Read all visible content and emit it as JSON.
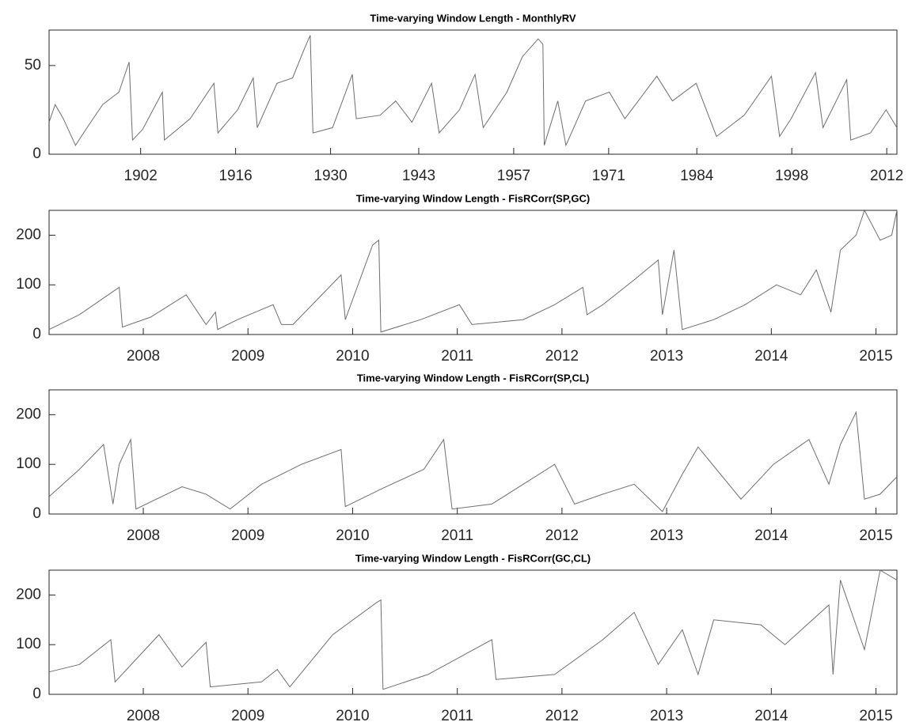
{
  "chart_data": [
    {
      "type": "line",
      "title": "Time-varying Window Length - MonthlyRV",
      "color": "#6e6e6e",
      "xlim": [
        1888.5,
        2013.5
      ],
      "ylim": [
        0,
        70
      ],
      "xticks": [
        1902,
        1916,
        1930,
        1943,
        1957,
        1971,
        1984,
        1998,
        2012
      ],
      "yticks": [
        0,
        50
      ],
      "x": [
        1888.5,
        1889.4,
        1890.6,
        1892.4,
        1894.1,
        1896.4,
        1898.8,
        1900.3,
        1900.8,
        1902.3,
        1905.2,
        1905.5,
        1909.3,
        1912.8,
        1913.4,
        1916.3,
        1918.6,
        1919.2,
        1922.1,
        1924.4,
        1926.2,
        1927.0,
        1927.4,
        1930.3,
        1933.2,
        1933.8,
        1937.3,
        1939.6,
        1942.0,
        1944.9,
        1946.0,
        1949.0,
        1951.3,
        1952.5,
        1956.0,
        1958.3,
        1960.6,
        1961.3,
        1961.5,
        1963.5,
        1964.7,
        1967.6,
        1971.1,
        1973.4,
        1978.1,
        1980.4,
        1983.9,
        1986.9,
        1991.0,
        1995.0,
        1996.2,
        1997.9,
        2001.5,
        2002.6,
        2006.1,
        2006.7,
        2009.6,
        2011.9,
        2013.5
      ],
      "values": [
        18,
        28,
        20,
        5,
        15,
        28,
        35,
        52,
        8,
        14,
        35,
        8,
        20,
        40,
        12,
        25,
        43,
        15,
        40,
        43,
        60,
        67,
        12,
        15,
        45,
        20,
        22,
        30,
        18,
        40,
        12,
        25,
        45,
        15,
        35,
        55,
        65,
        62,
        5,
        30,
        5,
        30,
        35,
        20,
        44,
        30,
        40,
        10,
        22,
        44,
        10,
        20,
        46,
        15,
        42,
        8,
        12,
        25,
        15
      ]
    },
    {
      "type": "line",
      "title": "Time-varying Window Length - FisRCorr(SP,GC)",
      "color": "#6e6e6e",
      "xlim": [
        2007.1,
        2015.2
      ],
      "ylim": [
        0,
        250
      ],
      "xticks": [
        2008,
        2009,
        2010,
        2011,
        2012,
        2013,
        2014,
        2015
      ],
      "yticks": [
        0,
        100,
        200
      ],
      "x": [
        2007.1,
        2007.39,
        2007.77,
        2007.8,
        2008.07,
        2008.41,
        2008.6,
        2008.69,
        2008.71,
        2008.9,
        2009.24,
        2009.32,
        2009.43,
        2009.89,
        2009.93,
        2010.19,
        2010.25,
        2010.27,
        2010.65,
        2011.02,
        2011.14,
        2011.63,
        2011.93,
        2012.2,
        2012.24,
        2012.39,
        2012.69,
        2012.92,
        2012.96,
        2013.07,
        2013.15,
        2013.45,
        2013.75,
        2014.05,
        2014.28,
        2014.43,
        2014.57,
        2014.66,
        2014.81,
        2014.89,
        2015.04,
        2015.15,
        2015.2
      ],
      "values": [
        10,
        40,
        95,
        15,
        35,
        80,
        20,
        45,
        10,
        30,
        60,
        20,
        20,
        120,
        30,
        180,
        190,
        5,
        30,
        60,
        20,
        30,
        60,
        95,
        40,
        60,
        110,
        150,
        40,
        170,
        10,
        30,
        60,
        100,
        80,
        130,
        45,
        170,
        200,
        250,
        190,
        200,
        250
      ]
    },
    {
      "type": "line",
      "title": "Time-varying Window Length - FisRCorr(SP,CL)",
      "color": "#6e6e6e",
      "xlim": [
        2007.1,
        2015.2
      ],
      "ylim": [
        0,
        250
      ],
      "xticks": [
        2008,
        2009,
        2010,
        2011,
        2012,
        2013,
        2014,
        2015
      ],
      "yticks": [
        0,
        100,
        200
      ],
      "x": [
        2007.1,
        2007.39,
        2007.62,
        2007.71,
        2007.77,
        2007.88,
        2007.93,
        2008.37,
        2008.6,
        2008.83,
        2009.13,
        2009.51,
        2009.89,
        2009.93,
        2010.27,
        2010.68,
        2010.87,
        2010.95,
        2011.33,
        2011.63,
        2011.93,
        2012.12,
        2012.39,
        2012.69,
        2012.96,
        2013.15,
        2013.3,
        2013.71,
        2014.02,
        2014.36,
        2014.55,
        2014.66,
        2014.81,
        2014.89,
        2015.04,
        2015.2
      ],
      "values": [
        35,
        90,
        140,
        20,
        100,
        150,
        10,
        55,
        40,
        10,
        60,
        100,
        130,
        15,
        50,
        90,
        150,
        10,
        20,
        60,
        100,
        20,
        40,
        60,
        5,
        80,
        135,
        30,
        100,
        150,
        60,
        140,
        205,
        30,
        40,
        75
      ]
    },
    {
      "type": "line",
      "title": "Time-varying Window Length - FisRCorr(GC,CL)",
      "color": "#6e6e6e",
      "xlim": [
        2007.1,
        2015.2
      ],
      "ylim": [
        0,
        250
      ],
      "xticks": [
        2008,
        2009,
        2010,
        2011,
        2012,
        2013,
        2014,
        2015
      ],
      "yticks": [
        0,
        100,
        200
      ],
      "x": [
        2007.1,
        2007.39,
        2007.69,
        2007.73,
        2008.15,
        2008.37,
        2008.6,
        2008.64,
        2009.13,
        2009.28,
        2009.4,
        2009.81,
        2010.23,
        2010.27,
        2010.29,
        2010.72,
        2011.33,
        2011.37,
        2011.93,
        2012.39,
        2012.69,
        2012.92,
        2013.15,
        2013.3,
        2013.45,
        2013.9,
        2014.13,
        2014.55,
        2014.59,
        2014.66,
        2014.89,
        2015.04,
        2015.2
      ],
      "values": [
        45,
        60,
        110,
        25,
        120,
        55,
        105,
        15,
        25,
        50,
        15,
        120,
        185,
        190,
        10,
        40,
        110,
        30,
        40,
        110,
        165,
        60,
        130,
        40,
        150,
        140,
        100,
        180,
        40,
        230,
        90,
        250,
        230
      ]
    }
  ]
}
